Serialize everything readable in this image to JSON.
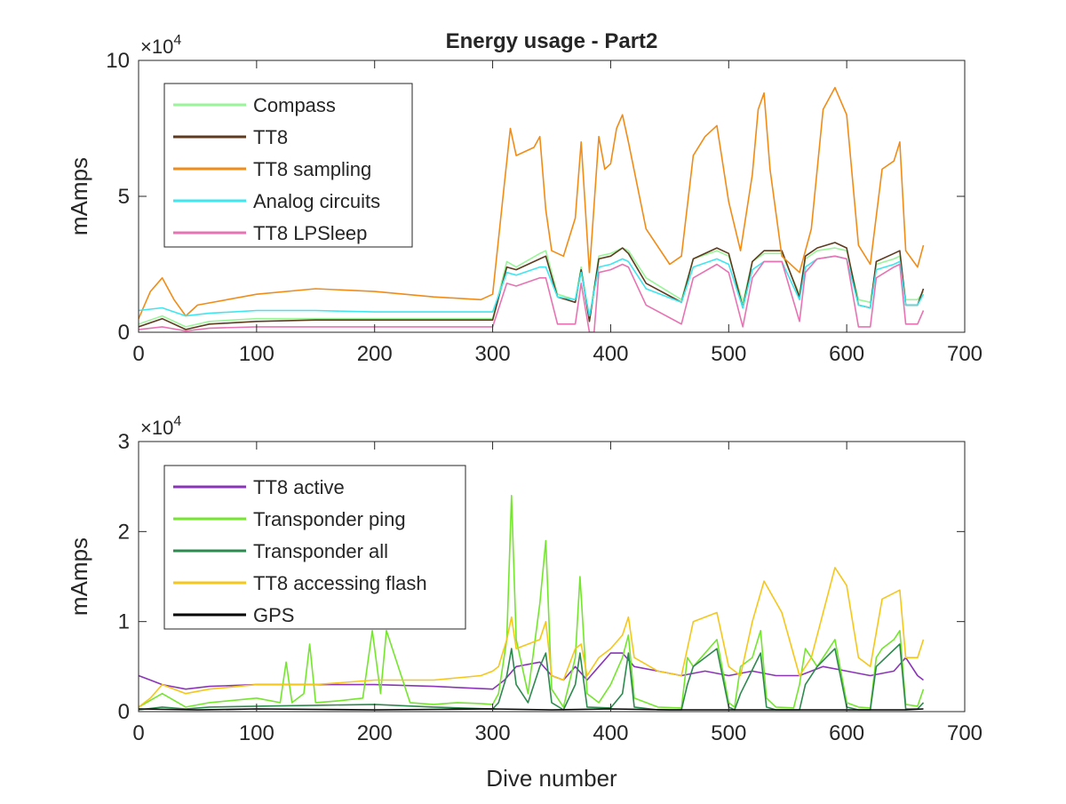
{
  "chart_data": [
    {
      "type": "line",
      "title": "Energy usage - Part2",
      "xlabel": "",
      "ylabel": "mAmps",
      "xlim": [
        0,
        700
      ],
      "ylim": [
        0,
        100000
      ],
      "xticks": [
        0,
        100,
        200,
        300,
        400,
        500,
        600,
        700
      ],
      "xtick_labels": [
        "0",
        "100",
        "200",
        "300",
        "400",
        "500",
        "600",
        "700"
      ],
      "yticks": [
        0,
        50000,
        100000
      ],
      "ytick_labels": [
        "0",
        "5",
        "10"
      ],
      "exponent_label": "×10",
      "exponent_power": "4",
      "grid": false,
      "legend_position": "top-left",
      "series": [
        {
          "name": "Compass",
          "color": "#98f598",
          "x": [
            0,
            20,
            40,
            60,
            100,
            150,
            200,
            250,
            300,
            312,
            320,
            340,
            345,
            355,
            370,
            375,
            382,
            390,
            400,
            410,
            415,
            430,
            460,
            470,
            490,
            500,
            512,
            520,
            530,
            545,
            560,
            565,
            575,
            590,
            600,
            610,
            620,
            625,
            640,
            645,
            650,
            660,
            665
          ],
          "y": [
            3000,
            6000,
            2000,
            4000,
            5000,
            5000,
            5000,
            5000,
            5000,
            26000,
            24000,
            29000,
            30000,
            14000,
            12000,
            24000,
            5000,
            28000,
            29000,
            31000,
            30000,
            20000,
            12000,
            27000,
            30000,
            28000,
            11000,
            26000,
            29000,
            29000,
            14000,
            27000,
            30000,
            31000,
            30000,
            12000,
            11000,
            25000,
            27000,
            28000,
            12000,
            12000,
            15000
          ]
        },
        {
          "name": "TT8",
          "color": "#5e3a1e",
          "x": [
            0,
            20,
            40,
            60,
            100,
            150,
            200,
            250,
            300,
            312,
            320,
            340,
            345,
            355,
            370,
            375,
            382,
            390,
            400,
            410,
            415,
            430,
            460,
            470,
            490,
            500,
            512,
            520,
            530,
            545,
            560,
            565,
            575,
            590,
            600,
            610,
            620,
            625,
            640,
            645,
            650,
            660,
            665
          ],
          "y": [
            2000,
            5000,
            1000,
            3000,
            4000,
            4500,
            4500,
            4500,
            4500,
            24000,
            23000,
            27000,
            28000,
            13000,
            11000,
            23000,
            4000,
            27000,
            28000,
            31000,
            29000,
            18000,
            11000,
            27000,
            31000,
            29000,
            9000,
            26000,
            30000,
            30000,
            13000,
            28000,
            31000,
            33000,
            31000,
            10000,
            9000,
            26000,
            29000,
            30000,
            10000,
            10000,
            16000
          ]
        },
        {
          "name": "TT8 sampling",
          "color": "#f08c17",
          "x": [
            0,
            10,
            20,
            30,
            40,
            50,
            100,
            150,
            200,
            250,
            290,
            300,
            310,
            315,
            320,
            335,
            340,
            345,
            350,
            360,
            370,
            375,
            382,
            390,
            395,
            400,
            405,
            410,
            415,
            430,
            450,
            460,
            470,
            480,
            490,
            500,
            510,
            520,
            525,
            530,
            535,
            545,
            560,
            570,
            580,
            590,
            600,
            610,
            620,
            630,
            640,
            645,
            650,
            660,
            665
          ],
          "y": [
            5000,
            15000,
            20000,
            12000,
            6000,
            10000,
            14000,
            16000,
            15000,
            13000,
            12000,
            14000,
            55000,
            75000,
            65000,
            68000,
            72000,
            45000,
            30000,
            28000,
            42000,
            70000,
            22000,
            72000,
            60000,
            62000,
            75000,
            80000,
            70000,
            38000,
            25000,
            28000,
            65000,
            72000,
            76000,
            48000,
            30000,
            58000,
            82000,
            88000,
            60000,
            28000,
            22000,
            38000,
            82000,
            90000,
            80000,
            32000,
            25000,
            60000,
            63000,
            70000,
            30000,
            24000,
            32000
          ]
        },
        {
          "name": "Analog circuits",
          "color": "#3ee6ef",
          "x": [
            0,
            20,
            40,
            60,
            100,
            150,
            200,
            250,
            300,
            312,
            320,
            340,
            345,
            355,
            370,
            375,
            382,
            390,
            400,
            410,
            415,
            430,
            460,
            470,
            490,
            500,
            512,
            520,
            530,
            545,
            560,
            565,
            575,
            590,
            600,
            610,
            620,
            625,
            640,
            645,
            650,
            660,
            665
          ],
          "y": [
            8000,
            9000,
            6000,
            7000,
            8000,
            8000,
            7500,
            7500,
            7500,
            22000,
            21000,
            24000,
            24000,
            13000,
            12000,
            22000,
            6000,
            24000,
            25000,
            27000,
            26000,
            16000,
            11000,
            24000,
            27000,
            25000,
            9000,
            23000,
            26000,
            26000,
            12000,
            24000,
            27000,
            28000,
            27000,
            10000,
            9000,
            23000,
            25000,
            26000,
            10000,
            10000,
            14000
          ]
        },
        {
          "name": "TT8 LPSleep",
          "color": "#e773b3",
          "x": [
            0,
            20,
            40,
            60,
            100,
            150,
            200,
            250,
            300,
            312,
            320,
            340,
            345,
            355,
            370,
            375,
            382,
            386,
            390,
            400,
            410,
            415,
            430,
            460,
            470,
            490,
            500,
            512,
            520,
            530,
            545,
            560,
            565,
            575,
            590,
            600,
            610,
            620,
            625,
            640,
            645,
            650,
            660,
            665
          ],
          "y": [
            1000,
            2000,
            500,
            1500,
            2000,
            2000,
            2000,
            2000,
            2000,
            18000,
            17000,
            20000,
            20000,
            3000,
            3000,
            18000,
            0,
            0,
            22000,
            23000,
            25000,
            24000,
            10000,
            3000,
            20000,
            25000,
            22000,
            2000,
            20000,
            26000,
            26000,
            4000,
            22000,
            27000,
            28000,
            27000,
            2000,
            2000,
            20000,
            24000,
            25000,
            3000,
            3000,
            8000
          ]
        }
      ]
    },
    {
      "type": "line",
      "title": "",
      "xlabel": "Dive number",
      "ylabel": "mAmps",
      "xlim": [
        0,
        700
      ],
      "ylim": [
        0,
        30000
      ],
      "xticks": [
        0,
        100,
        200,
        300,
        400,
        500,
        600,
        700
      ],
      "xtick_labels": [
        "0",
        "100",
        "200",
        "300",
        "400",
        "500",
        "600",
        "700"
      ],
      "yticks": [
        0,
        10000,
        20000,
        30000
      ],
      "ytick_labels": [
        "0",
        "1",
        "2",
        "3"
      ],
      "exponent_label": "×10",
      "exponent_power": "4",
      "grid": false,
      "legend_position": "top-left",
      "series": [
        {
          "name": "TT8 active",
          "color": "#8a35b8",
          "x": [
            0,
            10,
            20,
            40,
            60,
            100,
            150,
            200,
            250,
            300,
            310,
            320,
            340,
            350,
            360,
            370,
            380,
            390,
            400,
            410,
            420,
            440,
            460,
            480,
            500,
            520,
            540,
            560,
            580,
            600,
            620,
            640,
            650,
            660,
            665
          ],
          "y": [
            4000,
            3500,
            3000,
            2500,
            2800,
            3000,
            3000,
            3000,
            2800,
            2500,
            3500,
            5000,
            5500,
            4000,
            3500,
            5000,
            3500,
            5000,
            6500,
            6500,
            5000,
            4500,
            4000,
            4500,
            4000,
            4500,
            4000,
            4000,
            5000,
            4500,
            4000,
            4500,
            6000,
            4000,
            3500
          ]
        },
        {
          "name": "Transponder ping",
          "color": "#74e62e",
          "x": [
            0,
            20,
            40,
            60,
            100,
            120,
            125,
            130,
            140,
            145,
            150,
            170,
            190,
            198,
            205,
            210,
            230,
            250,
            270,
            290,
            300,
            305,
            312,
            316,
            320,
            330,
            340,
            345,
            350,
            360,
            370,
            374,
            380,
            390,
            400,
            410,
            415,
            420,
            440,
            460,
            465,
            470,
            490,
            500,
            505,
            510,
            520,
            527,
            532,
            540,
            555,
            560,
            565,
            575,
            590,
            600,
            610,
            620,
            625,
            630,
            640,
            645,
            650,
            660,
            665
          ],
          "y": [
            500,
            2000,
            500,
            1000,
            1500,
            1000,
            5500,
            1000,
            2000,
            7500,
            1000,
            1200,
            1500,
            9000,
            2000,
            9000,
            1000,
            800,
            1000,
            900,
            800,
            2000,
            8000,
            24000,
            8000,
            2000,
            12000,
            19000,
            2500,
            500,
            6000,
            15000,
            2000,
            1000,
            3000,
            6000,
            8500,
            1500,
            500,
            400,
            6000,
            5000,
            8000,
            1000,
            500,
            5000,
            6000,
            9000,
            1500,
            500,
            400,
            3000,
            7000,
            5000,
            8000,
            1000,
            500,
            400,
            6000,
            7000,
            8000,
            9000,
            800,
            600,
            2500
          ]
        },
        {
          "name": "Transponder all",
          "color": "#2d8a4e",
          "x": [
            0,
            20,
            40,
            60,
            100,
            150,
            200,
            250,
            300,
            305,
            312,
            316,
            320,
            330,
            340,
            345,
            350,
            360,
            370,
            374,
            380,
            400,
            410,
            415,
            420,
            440,
            460,
            465,
            470,
            490,
            500,
            505,
            510,
            527,
            532,
            540,
            560,
            565,
            575,
            590,
            600,
            610,
            620,
            625,
            645,
            650,
            660,
            665
          ],
          "y": [
            200,
            500,
            300,
            500,
            600,
            700,
            800,
            500,
            300,
            1000,
            4000,
            7000,
            3000,
            1000,
            5000,
            6500,
            1000,
            200,
            3000,
            6500,
            500,
            400,
            2000,
            6500,
            500,
            200,
            200,
            3000,
            5000,
            7000,
            500,
            200,
            2000,
            6500,
            500,
            200,
            200,
            3000,
            5000,
            7000,
            500,
            200,
            200,
            5000,
            7500,
            300,
            300,
            1000
          ]
        },
        {
          "name": "TT8 accessing flash",
          "color": "#f5c71a",
          "x": [
            0,
            10,
            20,
            40,
            60,
            100,
            150,
            200,
            250,
            290,
            300,
            305,
            312,
            316,
            320,
            340,
            345,
            350,
            360,
            370,
            375,
            380,
            390,
            400,
            410,
            415,
            420,
            440,
            460,
            470,
            490,
            500,
            510,
            520,
            530,
            545,
            560,
            570,
            590,
            600,
            610,
            620,
            630,
            645,
            650,
            660,
            665
          ],
          "y": [
            500,
            1500,
            3000,
            2000,
            2500,
            3000,
            3000,
            3500,
            3500,
            4000,
            4500,
            5000,
            8000,
            10500,
            7000,
            8000,
            10000,
            4000,
            3500,
            7000,
            7500,
            4000,
            6000,
            7000,
            8500,
            10500,
            6000,
            4500,
            4000,
            10000,
            11000,
            5000,
            4000,
            10000,
            14500,
            11000,
            4000,
            6000,
            16000,
            14000,
            6000,
            5000,
            12500,
            13500,
            6000,
            6000,
            8000
          ]
        },
        {
          "name": "GPS",
          "color": "#000000",
          "x": [
            0,
            50,
            100,
            150,
            200,
            250,
            300,
            350,
            400,
            450,
            500,
            550,
            600,
            650,
            665
          ],
          "y": [
            300,
            200,
            300,
            250,
            200,
            250,
            300,
            200,
            300,
            200,
            200,
            200,
            200,
            200,
            300
          ]
        }
      ]
    }
  ]
}
